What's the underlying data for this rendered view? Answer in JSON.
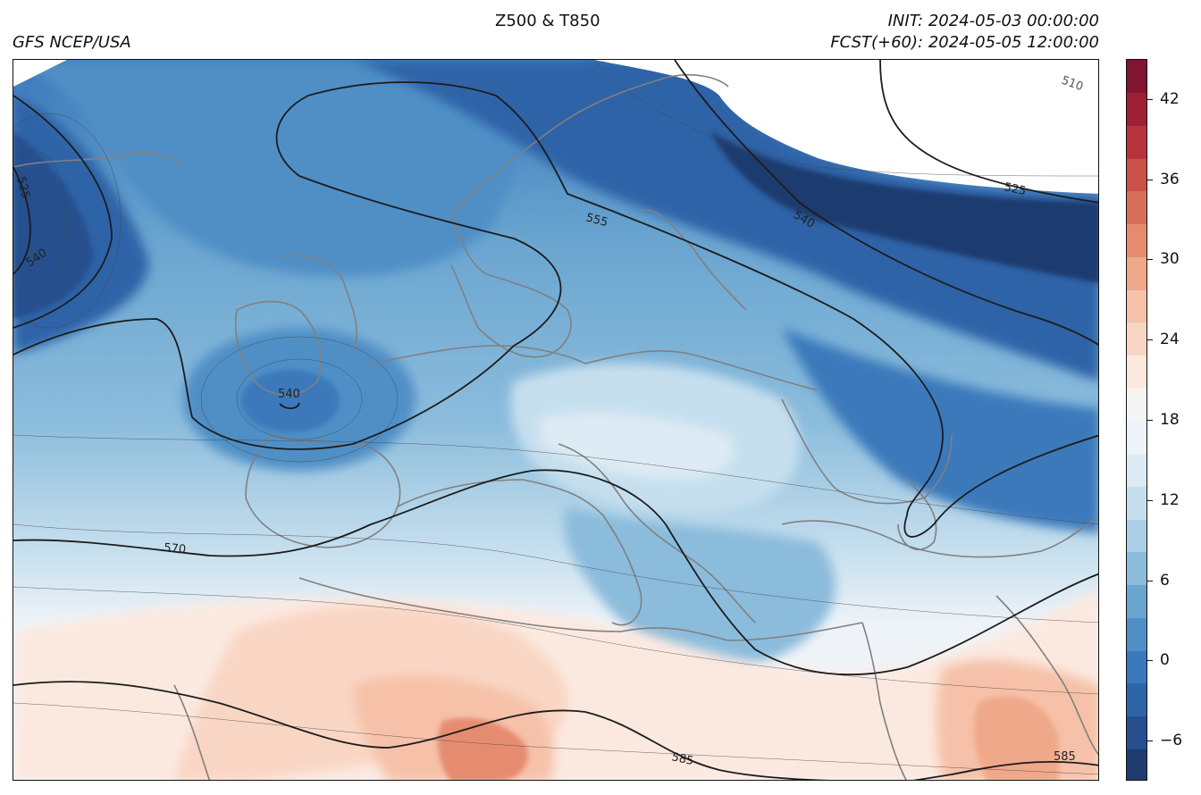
{
  "header": {
    "source": "GFS NCEP/USA",
    "title": "Z500 & T850",
    "init": "INIT: 2024-05-03 00:00:00",
    "forecast": "FCST(+60): 2024-05-05 12:00:00"
  },
  "colorbar": {
    "ticks": [
      "42",
      "36",
      "30",
      "24",
      "18",
      "12",
      "6",
      "0",
      "−6"
    ],
    "tick_values": [
      42,
      36,
      30,
      24,
      18,
      12,
      6,
      0,
      -6
    ],
    "range": [
      -9,
      45
    ],
    "colors": [
      "#1f3b6e",
      "#254f8e",
      "#2d64a8",
      "#3a79bb",
      "#4f8fc6",
      "#6aa5d0",
      "#8bbcdc",
      "#aacfe6",
      "#c6dfee",
      "#ddebf4",
      "#edf3f8",
      "#f7f5f4",
      "#fbe9e0",
      "#f9d6c4",
      "#f6c1a8",
      "#f0a88a",
      "#e58c6f",
      "#d96f58",
      "#cc5046",
      "#b8333b",
      "#9e1f33",
      "#7f1530"
    ]
  },
  "contour_labels": {
    "l540_low": "540",
    "l525_west": "525",
    "l540_west": "540",
    "l555": "555",
    "l540_east": "540",
    "l525_east": "525",
    "l510": "510",
    "l570": "570",
    "l585_center": "585",
    "l585_east": "585"
  }
}
